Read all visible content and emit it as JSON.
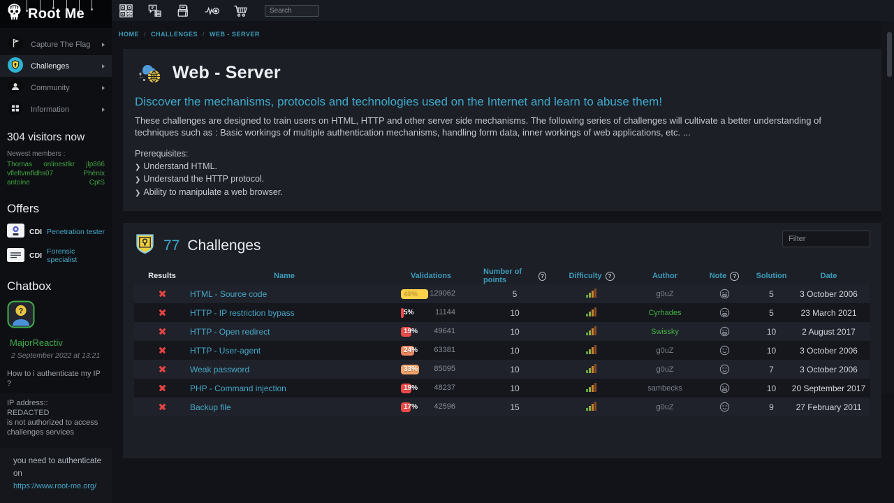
{
  "logo": {
    "title": "Root Me"
  },
  "topbar": {
    "search_placeholder": "Search",
    "icons": [
      "qr-badge",
      "chat-network",
      "documents",
      "activity-target",
      "cart"
    ],
    "right_icons": [
      "language-globe",
      "circle-dot",
      "lock"
    ]
  },
  "breadcrumb": {
    "items": [
      "HOME",
      "CHALLENGES",
      "WEB - SERVER"
    ]
  },
  "sidebar": {
    "menu": [
      {
        "label": "Capture The Flag",
        "icon": "ctf",
        "active": false
      },
      {
        "label": "Challenges",
        "icon": "challenges",
        "active": true
      },
      {
        "label": "Community",
        "icon": "community",
        "active": false
      },
      {
        "label": "Information",
        "icon": "information",
        "active": false
      }
    ],
    "visitors": "304 visitors now",
    "newest_members_label": "Newest members :",
    "members": [
      "Thomas",
      "onlinestlkr",
      "jlp866",
      "vfleltvmfldhs07",
      "Phénix",
      "antoine",
      "CptS"
    ],
    "offers": {
      "title": "Offers",
      "items": [
        {
          "contract": "CDI",
          "label": "Penetration tester",
          "icon": "badge-purple"
        },
        {
          "contract": "CDI",
          "label": "Forensic specialist",
          "icon": "card-lines"
        }
      ]
    },
    "chatbox": {
      "title": "Chatbox",
      "username": "MajorReactiv",
      "timestamp": "2 September 2022 at 13:21",
      "message": "How to i authenticate my IP ?",
      "lines": [
        "IP address::",
        "REDACTED",
        "is not authorized to access",
        "challenges services"
      ],
      "reply_text": "you need to authenticate on",
      "reply_link": "https://www.root-me.org/"
    }
  },
  "main": {
    "title": "Web - Server",
    "subtitle": "Discover the mechanisms, protocols and technologies used on the Internet and learn to abuse them!",
    "description": "These challenges are designed to train users on HTML, HTTP and other server side mechanisms. The following series of challenges will cultivate a better understanding of techniques such as : Basic workings of multiple authentication mechanisms, handling form data, inner workings of web applications, etc. ...",
    "prerequisites_label": "Prerequisites:",
    "prerequisites": [
      "Understand HTML.",
      "Understand the HTTP protocol.",
      "Ability to manipulate a web browser."
    ]
  },
  "challenges": {
    "count": "77",
    "title": "Challenges",
    "filter_placeholder": "Filter",
    "columns": [
      {
        "label": "Results",
        "help": false
      },
      {
        "label": "Name",
        "help": false
      },
      {
        "label": "Validations",
        "help": false
      },
      {
        "label": "Number of points",
        "help": true
      },
      {
        "label": "Difficulty",
        "help": true
      },
      {
        "label": "Author",
        "help": false
      },
      {
        "label": "Note",
        "help": true
      },
      {
        "label": "Solution",
        "help": false
      },
      {
        "label": "Date",
        "help": false
      }
    ],
    "rows": [
      {
        "name": "HTML - Source code",
        "pct": "49%",
        "pct_value": 49,
        "bar_color": "#fdd24a",
        "pct_color": "#e3bb3e",
        "count": "129062",
        "points": "5",
        "author": "g0uZ",
        "author_color": "muted",
        "note": "grin",
        "solution": "5",
        "date": "3 October 2006"
      },
      {
        "name": "HTTP - IP restriction bypass",
        "pct": "5%",
        "pct_value": 5,
        "bar_color": "#ee4b49",
        "pct_color": "#ffffff",
        "count": "11144",
        "points": "10",
        "author": "Cyrhades",
        "author_color": "green",
        "note": "grin",
        "solution": "5",
        "date": "23 March 2021"
      },
      {
        "name": "HTTP - Open redirect",
        "pct": "19%",
        "pct_value": 19,
        "bar_color": "#ee4b49",
        "pct_color": "#ffffff",
        "count": "49641",
        "points": "10",
        "author": "Swissky",
        "author_color": "green",
        "note": "grin",
        "solution": "10",
        "date": "2 August 2017"
      },
      {
        "name": "HTTP - User-agent",
        "pct": "24%",
        "pct_value": 24,
        "bar_color": "#f08a63",
        "pct_color": "#ffffff",
        "count": "63381",
        "points": "10",
        "author": "g0uZ",
        "author_color": "muted",
        "note": "smile",
        "solution": "10",
        "date": "3 October 2006"
      },
      {
        "name": "Weak password",
        "pct": "33%",
        "pct_value": 33,
        "bar_color": "#f2a369",
        "pct_color": "#ffffff",
        "count": "85095",
        "points": "10",
        "author": "g0uZ",
        "author_color": "muted",
        "note": "smile",
        "solution": "7",
        "date": "3 October 2006"
      },
      {
        "name": "PHP - Command injection",
        "pct": "19%",
        "pct_value": 19,
        "bar_color": "#ee4b49",
        "pct_color": "#ffffff",
        "count": "48237",
        "points": "10",
        "author": "sambecks",
        "author_color": "muted",
        "note": "grin",
        "solution": "10",
        "date": "20 September 2017"
      },
      {
        "name": "Backup file",
        "pct": "17%",
        "pct_value": 17,
        "bar_color": "#ee4b49",
        "pct_color": "#ffffff",
        "count": "42596",
        "points": "15",
        "author": "g0uZ",
        "author_color": "muted",
        "note": "smile",
        "solution": "9",
        "date": "27 February 2011"
      }
    ]
  },
  "colors": {
    "accent_teal": "#3fa9cb",
    "link_teal": "#45a7c6",
    "green": "#3fa23f",
    "fail_red": "#e84444",
    "bar_yellow": "#fdd24a",
    "bar_red": "#ee4b49",
    "bar_orange": "#f08a63"
  }
}
